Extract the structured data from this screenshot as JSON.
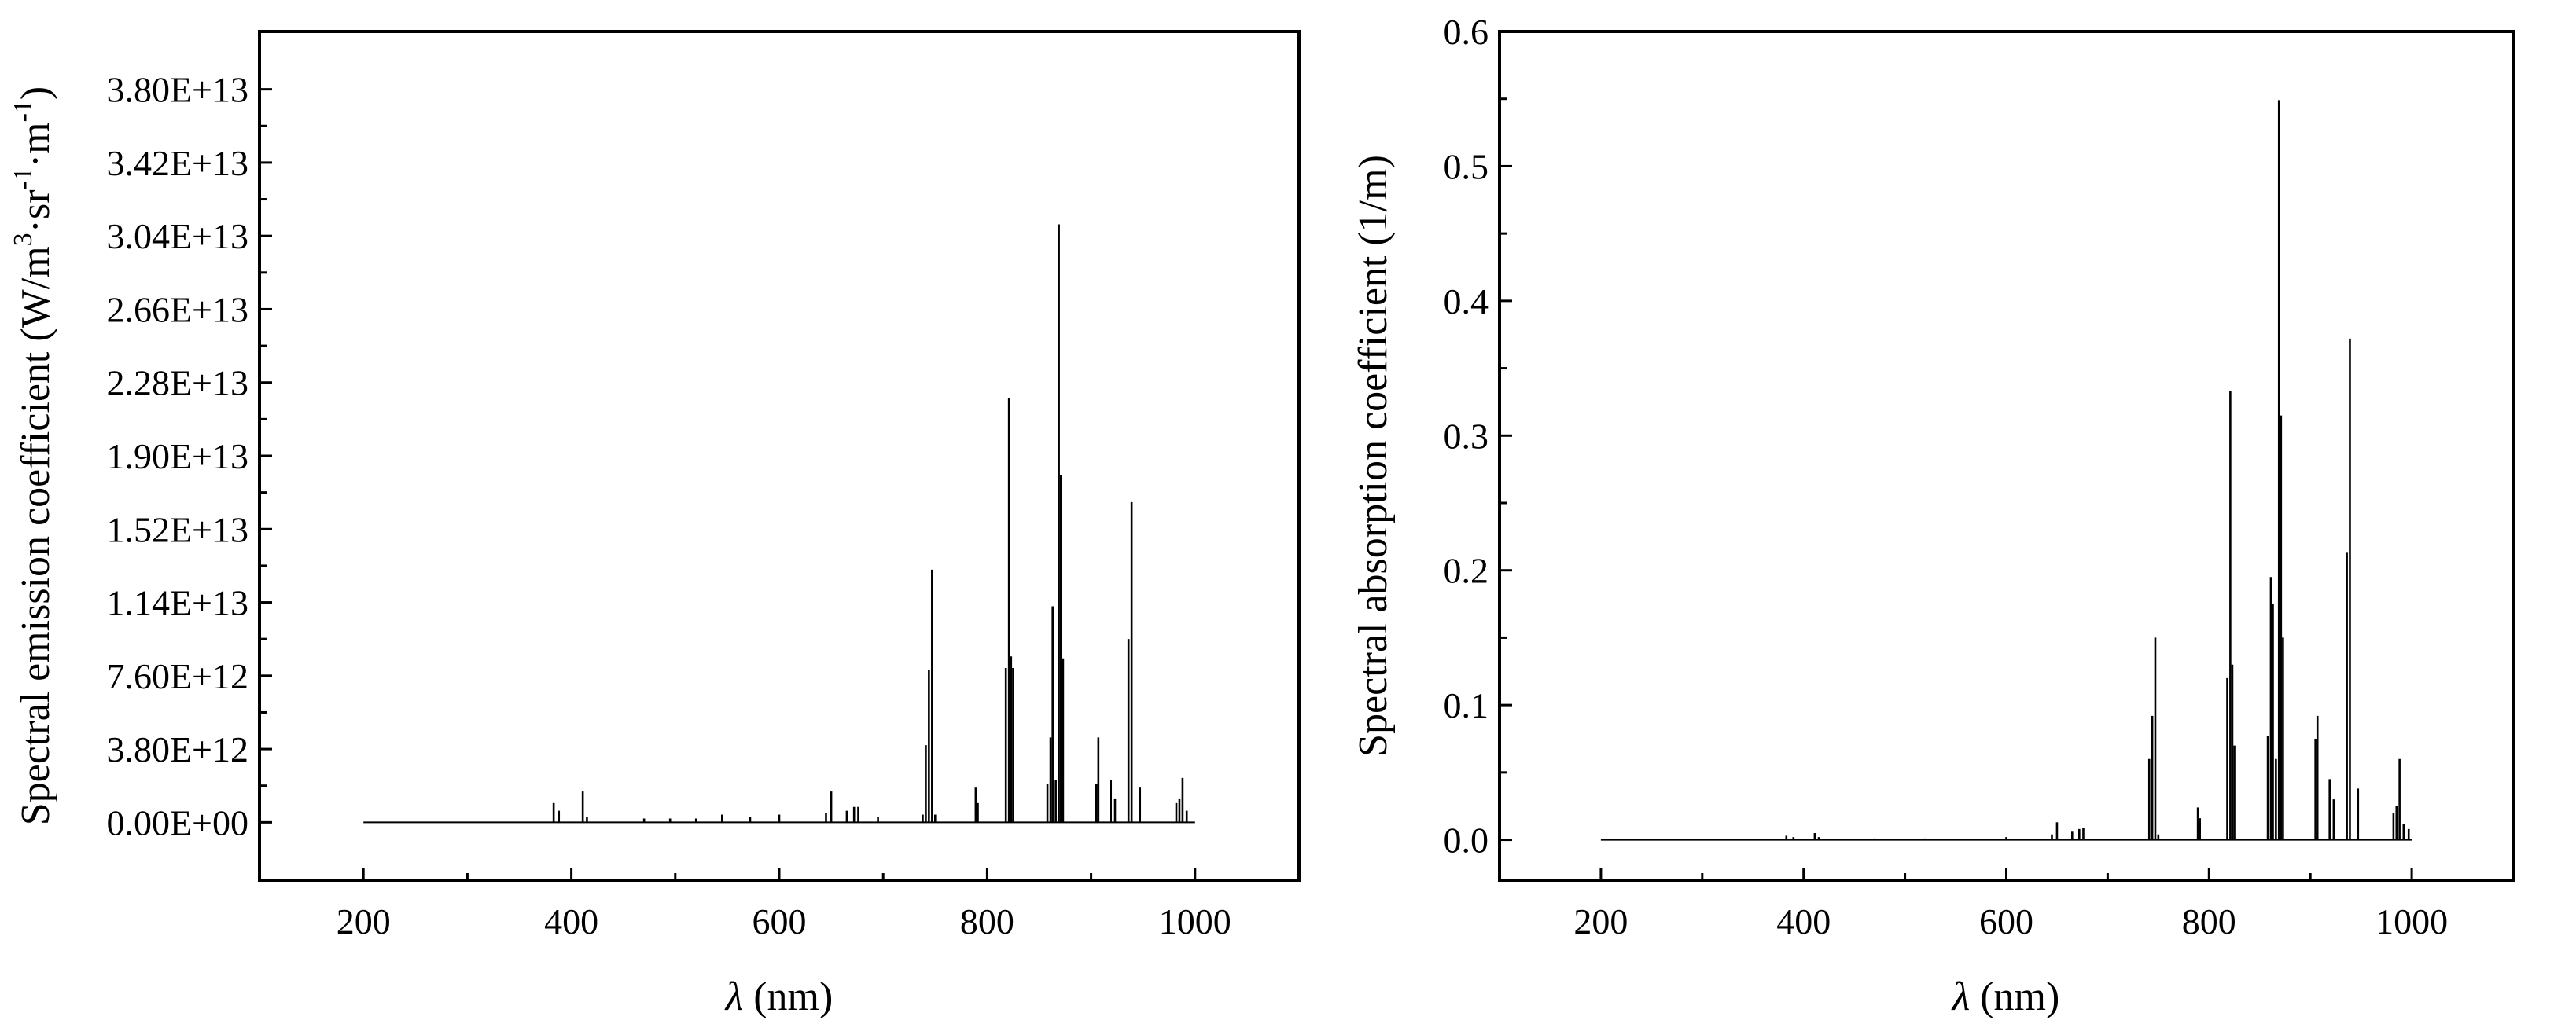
{
  "chart_data": [
    {
      "type": "line",
      "title": "",
      "ylabel": "Spectral emission coefficient (W/m³·sr⁻¹·m⁻¹)",
      "ylabel_parts": {
        "prefix": "Spectral emission coefficient (W/m",
        "sup1": "3",
        "mid1": "·sr",
        "sup2": "-1",
        "mid2": "·m",
        "sup3": "-1",
        "suffix": ")"
      },
      "xlabel_symbol": "λ",
      "xlabel_unit": " (nm)",
      "xlim": [
        100,
        1100
      ],
      "ylim": [
        -3000000000000.0,
        41000000000000.0
      ],
      "xticks": [
        200,
        400,
        600,
        800,
        1000
      ],
      "xtick_labels": [
        "200",
        "400",
        "600",
        "800",
        "1000"
      ],
      "yticks": [
        0,
        3800000000000.0,
        7600000000000.0,
        11400000000000.0,
        15200000000000.0,
        19000000000000.0,
        22800000000000.0,
        26600000000000.0,
        30400000000000.0,
        34200000000000.0,
        38000000000000.0
      ],
      "ytick_labels": [
        "0.00E+00",
        "3.80E+12",
        "7.60E+12",
        "1.14E+13",
        "1.52E+13",
        "1.90E+13",
        "2.28E+13",
        "2.66E+13",
        "3.04E+13",
        "3.42E+13",
        "3.80E+13"
      ],
      "baseline_x": [
        200,
        1000
      ],
      "grid": false,
      "series": [
        {
          "x": [
            383,
            388,
            411,
            415,
            470,
            495,
            520,
            545,
            572,
            600,
            645,
            650,
            665,
            672,
            676,
            695,
            738,
            741,
            744,
            747,
            750,
            789,
            791,
            818,
            821,
            823,
            825,
            858,
            861,
            863,
            866,
            869,
            871,
            873,
            905,
            907,
            919,
            923,
            936,
            939,
            947,
            982,
            985,
            988,
            992
          ],
          "y": [
            1000000000000.0,
            600000000000.0,
            1600000000000.0,
            300000000000.0,
            200000000000.0,
            200000000000.0,
            200000000000.0,
            400000000000.0,
            300000000000.0,
            400000000000.0,
            500000000000.0,
            1600000000000.0,
            600000000000.0,
            800000000000.0,
            800000000000.0,
            300000000000.0,
            400000000000.0,
            4000000000000.0,
            7900000000000.0,
            13100000000000.0,
            400000000000.0,
            1800000000000.0,
            1000000000000.0,
            8000000000000.0,
            22000000000000.0,
            8600000000000.0,
            8000000000000.0,
            2000000000000.0,
            4400000000000.0,
            11200000000000.0,
            2200000000000.0,
            31000000000000.0,
            18000000000000.0,
            8500000000000.0,
            2000000000000.0,
            4400000000000.0,
            2200000000000.0,
            1200000000000.0,
            9500000000000.0,
            16600000000000.0,
            1800000000000.0,
            1000000000000.0,
            1200000000000.0,
            2300000000000.0,
            600000000000.0
          ]
        }
      ]
    },
    {
      "type": "line",
      "title": "",
      "ylabel": "Spectral absorption coefficient (1/m)",
      "xlabel_symbol": "λ",
      "xlabel_unit": " (nm)",
      "xlim": [
        100,
        1100
      ],
      "ylim": [
        -0.03,
        0.6
      ],
      "xticks": [
        200,
        400,
        600,
        800,
        1000
      ],
      "xtick_labels": [
        "200",
        "400",
        "600",
        "800",
        "1000"
      ],
      "yticks": [
        0,
        0.1,
        0.2,
        0.3,
        0.4,
        0.5,
        0.6
      ],
      "ytick_labels": [
        "0.0",
        "0.1",
        "0.2",
        "0.3",
        "0.4",
        "0.5",
        "0.6"
      ],
      "baseline_x": [
        200,
        1000
      ],
      "grid": false,
      "series": [
        {
          "x": [
            383,
            390,
            411,
            415,
            470,
            520,
            600,
            645,
            650,
            665,
            672,
            676,
            741,
            744,
            747,
            750,
            789,
            791,
            818,
            821,
            823,
            825,
            858,
            861,
            863,
            866,
            869,
            871,
            873,
            905,
            907,
            919,
            923,
            936,
            939,
            947,
            982,
            985,
            988,
            992,
            997
          ],
          "y": [
            0.003,
            0.002,
            0.005,
            0.002,
            0.001,
            0.001,
            0.002,
            0.004,
            0.013,
            0.006,
            0.008,
            0.009,
            0.06,
            0.092,
            0.15,
            0.004,
            0.024,
            0.016,
            0.12,
            0.333,
            0.13,
            0.07,
            0.077,
            0.195,
            0.175,
            0.06,
            0.549,
            0.315,
            0.15,
            0.075,
            0.092,
            0.045,
            0.03,
            0.213,
            0.372,
            0.038,
            0.02,
            0.025,
            0.06,
            0.012,
            0.008
          ]
        }
      ]
    }
  ]
}
